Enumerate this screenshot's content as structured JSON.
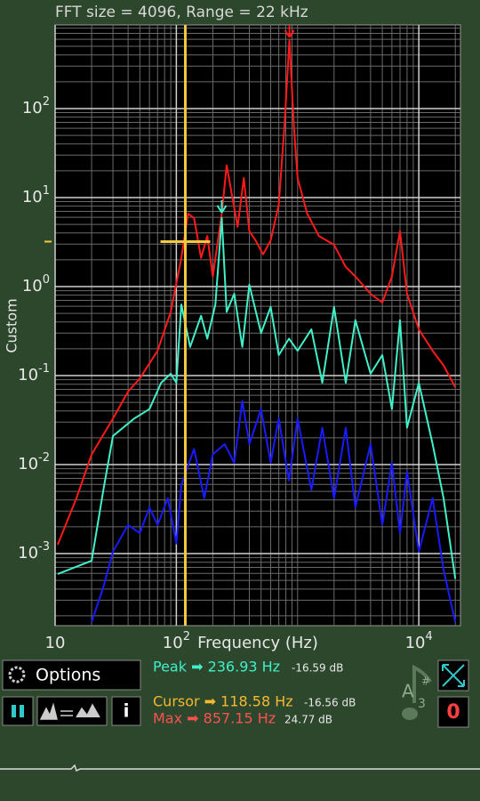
{
  "chart_data": {
    "type": "line",
    "title": "FFT size = 4096, Range = 22 kHz",
    "xlabel": "Frequency (Hz)",
    "ylabel": "Custom",
    "xscale": "log",
    "yscale": "log",
    "grid": true,
    "xlim": [
      10,
      22050
    ],
    "ylim": [
      0.000155,
      870
    ],
    "xticks": [
      10,
      {
        "value": 100,
        "label": "10",
        "exponent": "2"
      },
      {
        "value": 10000,
        "label": "10",
        "exponent": "4"
      }
    ],
    "yticks": [
      {
        "value": 0.001,
        "label": "10",
        "exponent": "-3"
      },
      {
        "value": 0.01,
        "label": "10",
        "exponent": "-2"
      },
      {
        "value": 0.1,
        "label": "10",
        "exponent": "-1"
      },
      {
        "value": 1,
        "label": "10",
        "exponent": "0"
      },
      {
        "value": 10,
        "label": "10",
        "exponent": "1"
      },
      {
        "value": 100,
        "label": "10",
        "exponent": "2"
      }
    ],
    "series": [
      {
        "color": "#ff1a1a",
        "x": [
          10.5,
          15,
          20,
          30,
          40,
          50,
          70,
          90,
          110,
          125,
          140,
          160,
          180,
          200,
          237,
          260,
          280,
          320,
          360,
          400,
          450,
          520,
          600,
          700,
          780,
          857,
          930,
          1000,
          1200,
          1500,
          2000,
          2500,
          3000,
          4000,
          5000,
          6000,
          7000,
          8000,
          10000,
          13000,
          16000,
          20000
        ],
        "values": [
          0.00126,
          0.0042,
          0.013,
          0.033,
          0.066,
          0.093,
          0.19,
          0.52,
          2.1,
          6.6,
          5.9,
          2.1,
          3.7,
          1.3,
          6.6,
          23,
          13,
          4.7,
          16.6,
          4.2,
          3.3,
          2.3,
          3.3,
          8.3,
          66,
          590,
          66,
          16.6,
          6.6,
          3.7,
          2.95,
          1.66,
          1.3,
          0.83,
          0.66,
          1.3,
          4.2,
          0.83,
          0.33,
          0.19,
          0.13,
          0.074
        ]
      },
      {
        "color": "#40f0c8",
        "x": [
          10.5,
          20,
          25,
          30,
          45,
          60,
          75,
          90,
          100,
          110,
          130,
          160,
          180,
          210,
          237,
          260,
          300,
          350,
          400,
          500,
          600,
          700,
          850,
          1000,
          1300,
          1600,
          2000,
          2500,
          3000,
          4000,
          5000,
          6000,
          7000,
          8000,
          10000,
          13000,
          16000,
          20000
        ],
        "values": [
          0.00059,
          0.00083,
          0.0052,
          0.021,
          0.033,
          0.042,
          0.083,
          0.105,
          0.083,
          0.63,
          0.21,
          0.47,
          0.26,
          0.63,
          5.9,
          0.52,
          0.83,
          0.21,
          1.05,
          0.3,
          0.59,
          0.17,
          0.26,
          0.19,
          0.33,
          0.083,
          0.59,
          0.083,
          0.42,
          0.105,
          0.17,
          0.042,
          0.42,
          0.026,
          0.083,
          0.017,
          0.0042,
          0.00052
        ]
      },
      {
        "color": "#1a1aff",
        "x": [
          20,
          25,
          30,
          40,
          50,
          60,
          70,
          85,
          100,
          110,
          140,
          170,
          200,
          250,
          300,
          350,
          400,
          500,
          600,
          700,
          850,
          1000,
          1300,
          1600,
          2000,
          2500,
          3000,
          4000,
          5000,
          6000,
          7000,
          8000,
          10000,
          13000,
          16000,
          20000
        ],
        "values": [
          0.00017,
          0.00042,
          0.00105,
          0.0021,
          0.0017,
          0.0033,
          0.0021,
          0.0042,
          0.0013,
          0.0059,
          0.015,
          0.0042,
          0.013,
          0.017,
          0.0105,
          0.052,
          0.017,
          0.042,
          0.0105,
          0.033,
          0.0066,
          0.033,
          0.0052,
          0.026,
          0.0042,
          0.026,
          0.0033,
          0.017,
          0.0021,
          0.0105,
          0.0017,
          0.0083,
          0.00105,
          0.0042,
          0.00066,
          0.00017
        ]
      }
    ],
    "cursor": {
      "x": 118.58,
      "y": 3.2,
      "color": "#f5c842"
    },
    "markers": [
      {
        "x": 236.93,
        "y": 5.9,
        "color": "#40f0c8"
      },
      {
        "x": 857.15,
        "y": 590,
        "color": "#ff1a1a"
      }
    ]
  },
  "ui": {
    "options": "Options",
    "info": "i",
    "peak": {
      "label": "Peak ➡ 236.93 Hz",
      "db": "-16.59 dB"
    },
    "cursor": {
      "label": "Cursor ➡ 118.58 Hz",
      "db": "-16.56 dB"
    },
    "max": {
      "label": "Max ➡ 857.15 Hz",
      "db": "24.77 dB"
    },
    "note": {
      "name": "A",
      "octave": "3",
      "accidental": "#"
    },
    "zero": "0"
  }
}
